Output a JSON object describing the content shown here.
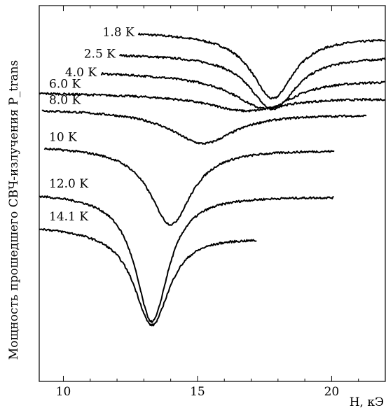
{
  "chart_data": {
    "type": "line",
    "xlabel": "H, кЭ",
    "ylabel": "Мощность прошедшего СВЧ-излучения P_trans",
    "xlim": [
      9.1,
      22.0
    ],
    "x_ticks": [
      10,
      15,
      20
    ],
    "x_tick_labels": [
      "10",
      "15",
      "20"
    ],
    "y_units": "arbitrary (curves vertically offset)",
    "ylim": [
      0,
      100
    ],
    "grid": false,
    "legend": "labels placed at start of each curve",
    "series": [
      {
        "label": "1.8 K",
        "x_start": 12.8,
        "x_end": 22.0,
        "baseline": 93.0,
        "slope": -1.4,
        "dip_center": 17.8,
        "dip_depth": 17.0,
        "dip_width": 0.95
      },
      {
        "label": "2.5 K",
        "x_start": 12.1,
        "x_end": 22.0,
        "baseline": 87.2,
        "slope": -0.6,
        "dip_center": 17.8,
        "dip_depth": 14.5,
        "dip_width": 1.05
      },
      {
        "label": "4.0 K",
        "x_start": 11.4,
        "x_end": 22.0,
        "baseline": 82.3,
        "slope": -2.0,
        "dip_center": 17.5,
        "dip_depth": 8.5,
        "dip_width": 1.4
      },
      {
        "label": "6.0 K",
        "x_start": 9.1,
        "x_end": 22.0,
        "baseline": 76.8,
        "slope": -1.4,
        "dip_center": 16.8,
        "dip_depth": 4.0,
        "dip_width": 1.7
      },
      {
        "label": "8.0 K",
        "x_start": 9.2,
        "x_end": 21.3,
        "baseline": 72.5,
        "slope": -1.4,
        "dip_center": 15.2,
        "dip_depth": 8.5,
        "dip_width": 1.45
      },
      {
        "label": "10 K",
        "x_start": 9.3,
        "x_end": 20.1,
        "baseline": 62.7,
        "slope": -1.0,
        "dip_center": 14.0,
        "dip_depth": 20.5,
        "dip_width": 0.95
      },
      {
        "label": "12.0 K",
        "x_start": 9.1,
        "x_end": 20.1,
        "baseline": 50.3,
        "slope": -1.0,
        "dip_center": 13.3,
        "dip_depth": 34.0,
        "dip_width": 0.75
      },
      {
        "label": "14.1 K",
        "x_start": 9.1,
        "x_end": 17.2,
        "baseline": 41.5,
        "slope": -3.0,
        "dip_center": 13.3,
        "dip_depth": 25.0,
        "dip_width": 0.8
      }
    ]
  }
}
